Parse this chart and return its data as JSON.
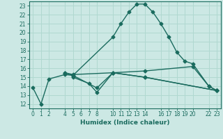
{
  "xlabel": "Humidex (Indice chaleur)",
  "ylabel": "",
  "bg_color": "#cce8e4",
  "line_color": "#1a6b5e",
  "grid_color": "#b0d8d0",
  "xlim": [
    -0.5,
    23.5
  ],
  "ylim": [
    11.5,
    23.5
  ],
  "xticks": [
    0,
    1,
    2,
    4,
    5,
    6,
    7,
    8,
    10,
    11,
    12,
    13,
    14,
    16,
    17,
    18,
    19,
    20,
    22,
    23
  ],
  "yticks": [
    12,
    13,
    14,
    15,
    16,
    17,
    18,
    19,
    20,
    21,
    22,
    23
  ],
  "line1_x": [
    0,
    1,
    2,
    4,
    5,
    10,
    11,
    12,
    13,
    14,
    15,
    16,
    17,
    18,
    19,
    20,
    22,
    23
  ],
  "line1_y": [
    13.8,
    12.0,
    14.8,
    15.3,
    15.2,
    19.5,
    21.0,
    22.3,
    23.2,
    23.2,
    22.3,
    21.0,
    19.5,
    17.8,
    16.8,
    16.5,
    14.0,
    13.5
  ],
  "line2_x": [
    4,
    5,
    10,
    14,
    20,
    22,
    23
  ],
  "line2_y": [
    15.5,
    15.3,
    15.5,
    15.7,
    16.2,
    14.0,
    13.5
  ],
  "line3_x": [
    4,
    5,
    8,
    10,
    14,
    23
  ],
  "line3_y": [
    15.5,
    15.2,
    13.8,
    15.5,
    15.0,
    13.5
  ],
  "line4_x": [
    5,
    7,
    8,
    10,
    14,
    23
  ],
  "line4_y": [
    15.0,
    14.3,
    13.3,
    15.5,
    15.0,
    13.5
  ]
}
